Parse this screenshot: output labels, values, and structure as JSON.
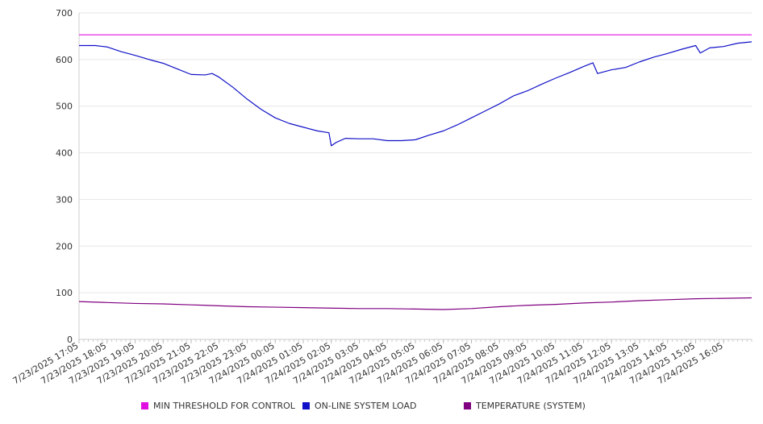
{
  "chart_data": {
    "type": "line",
    "title": "",
    "xlabel": "",
    "ylabel": "",
    "ylim": [
      0,
      700
    ],
    "yticks": [
      0,
      100,
      200,
      300,
      400,
      500,
      600,
      700
    ],
    "grid": true,
    "legend_position": "bottom",
    "x_tick_labels": [
      "7/23/2025 17:05",
      "7/23/2025 18:05",
      "7/23/2025 19:05",
      "7/23/2025 20:05",
      "7/23/2025 21:05",
      "7/23/2025 22:05",
      "7/23/2025 23:05",
      "7/24/2025 00:05",
      "7/24/2025 01:05",
      "7/24/2025 02:05",
      "7/24/2025 03:05",
      "7/24/2025 04:05",
      "7/24/2025 05:05",
      "7/24/2025 06:05",
      "7/24/2025 07:05",
      "7/24/2025 08:05",
      "7/24/2025 09:05",
      "7/24/2025 10:05",
      "7/24/2025 11:05",
      "7/24/2025 12:05",
      "7/24/2025 13:05",
      "7/24/2025 14:05",
      "7/24/2025 15:05",
      "7/24/2025 16:05"
    ],
    "x_range": [
      "7/23/2025 17:05",
      "7/24/2025 17:05"
    ],
    "series": [
      {
        "name": "MIN THRESHOLD FOR CONTROL",
        "color": "#e010e0",
        "points": [
          [
            "7/23/2025 17:05",
            653
          ],
          [
            "7/24/2025 17:05",
            653
          ]
        ]
      },
      {
        "name": "ON-LINE SYSTEM LOAD",
        "color": "#1010c8",
        "points": [
          [
            "7/23/2025 17:05",
            630
          ],
          [
            "7/23/2025 17:40",
            630
          ],
          [
            "7/23/2025 18:05",
            627
          ],
          [
            "7/23/2025 18:35",
            617
          ],
          [
            "7/23/2025 19:05",
            609
          ],
          [
            "7/23/2025 19:35",
            600
          ],
          [
            "7/23/2025 20:05",
            592
          ],
          [
            "7/23/2025 20:35",
            580
          ],
          [
            "7/23/2025 21:05",
            568
          ],
          [
            "7/23/2025 21:35",
            567
          ],
          [
            "7/23/2025 21:50",
            570
          ],
          [
            "7/23/2025 22:05",
            562
          ],
          [
            "7/23/2025 22:35",
            540
          ],
          [
            "7/23/2025 23:05",
            515
          ],
          [
            "7/23/2025 23:35",
            493
          ],
          [
            "7/24/2025 00:05",
            475
          ],
          [
            "7/24/2025 00:35",
            463
          ],
          [
            "7/24/2025 01:05",
            455
          ],
          [
            "7/24/2025 01:35",
            447
          ],
          [
            "7/24/2025 02:00",
            443
          ],
          [
            "7/24/2025 02:05",
            415
          ],
          [
            "7/24/2025 02:15",
            422
          ],
          [
            "7/24/2025 02:35",
            431
          ],
          [
            "7/24/2025 03:05",
            430
          ],
          [
            "7/24/2025 03:35",
            430
          ],
          [
            "7/24/2025 04:05",
            426
          ],
          [
            "7/24/2025 04:35",
            426
          ],
          [
            "7/24/2025 05:05",
            428
          ],
          [
            "7/24/2025 05:35",
            438
          ],
          [
            "7/24/2025 06:05",
            447
          ],
          [
            "7/24/2025 06:35",
            460
          ],
          [
            "7/24/2025 07:05",
            475
          ],
          [
            "7/24/2025 07:35",
            490
          ],
          [
            "7/24/2025 08:05",
            505
          ],
          [
            "7/24/2025 08:35",
            522
          ],
          [
            "7/24/2025 09:05",
            533
          ],
          [
            "7/24/2025 09:35",
            547
          ],
          [
            "7/24/2025 10:05",
            560
          ],
          [
            "7/24/2025 10:35",
            572
          ],
          [
            "7/24/2025 11:05",
            585
          ],
          [
            "7/24/2025 11:25",
            593
          ],
          [
            "7/24/2025 11:35",
            570
          ],
          [
            "7/24/2025 12:05",
            578
          ],
          [
            "7/24/2025 12:35",
            583
          ],
          [
            "7/24/2025 13:05",
            595
          ],
          [
            "7/24/2025 13:35",
            605
          ],
          [
            "7/24/2025 14:05",
            613
          ],
          [
            "7/24/2025 14:35",
            622
          ],
          [
            "7/24/2025 15:05",
            630
          ],
          [
            "7/24/2025 15:15",
            614
          ],
          [
            "7/24/2025 15:35",
            625
          ],
          [
            "7/24/2025 16:05",
            628
          ],
          [
            "7/24/2025 16:35",
            635
          ],
          [
            "7/24/2025 17:05",
            638
          ]
        ]
      },
      {
        "name": "TEMPERATURE (SYSTEM)",
        "color": "#800080",
        "points": [
          [
            "7/23/2025 17:05",
            81
          ],
          [
            "7/23/2025 18:05",
            79
          ],
          [
            "7/23/2025 19:05",
            77
          ],
          [
            "7/23/2025 20:05",
            76
          ],
          [
            "7/23/2025 21:05",
            74
          ],
          [
            "7/23/2025 22:05",
            72
          ],
          [
            "7/23/2025 23:05",
            70
          ],
          [
            "7/24/2025 00:05",
            69
          ],
          [
            "7/24/2025 01:05",
            68
          ],
          [
            "7/24/2025 02:05",
            67
          ],
          [
            "7/24/2025 03:05",
            66
          ],
          [
            "7/24/2025 04:05",
            66
          ],
          [
            "7/24/2025 05:05",
            65
          ],
          [
            "7/24/2025 06:05",
            64
          ],
          [
            "7/24/2025 07:05",
            66
          ],
          [
            "7/24/2025 08:05",
            70
          ],
          [
            "7/24/2025 09:05",
            73
          ],
          [
            "7/24/2025 10:05",
            75
          ],
          [
            "7/24/2025 11:05",
            78
          ],
          [
            "7/24/2025 12:05",
            80
          ],
          [
            "7/24/2025 13:05",
            83
          ],
          [
            "7/24/2025 14:05",
            85
          ],
          [
            "7/24/2025 15:05",
            87
          ],
          [
            "7/24/2025 16:05",
            88
          ],
          [
            "7/24/2025 17:05",
            89
          ]
        ]
      }
    ]
  }
}
